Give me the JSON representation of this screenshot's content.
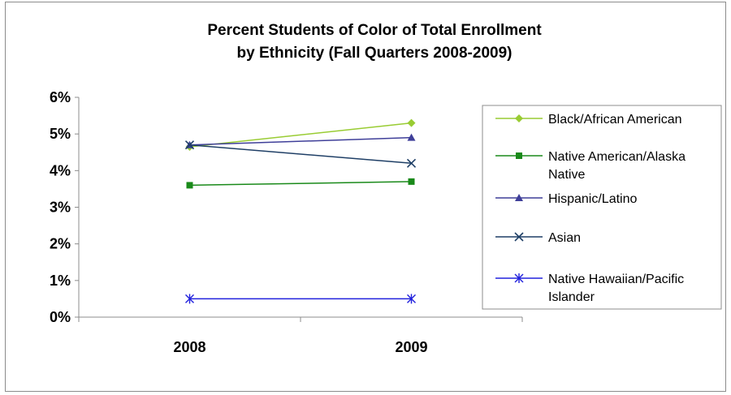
{
  "chart_data": {
    "type": "line",
    "title": [
      "Percent Students of Color of Total Enrollment",
      "by Ethnicity (Fall Quarters 2008-2009)"
    ],
    "categories": [
      "2008",
      "2009"
    ],
    "y_ticks": [
      "0%",
      "1%",
      "2%",
      "3%",
      "4%",
      "5%",
      "6%"
    ],
    "ylim": [
      0,
      6
    ],
    "grid": false,
    "legend_position": "right",
    "series": [
      {
        "name": [
          "Black/African American"
        ],
        "values": [
          4.65,
          5.3
        ],
        "color": "#99cc33",
        "marker": "diamond"
      },
      {
        "name": [
          "Native American/Alaska",
          "Native"
        ],
        "values": [
          3.6,
          3.7
        ],
        "color": "#1a8a1a",
        "marker": "square"
      },
      {
        "name": [
          "Hispanic/Latino"
        ],
        "values": [
          4.7,
          4.9
        ],
        "color": "#3f3f99",
        "marker": "triangle"
      },
      {
        "name": [
          "Asian"
        ],
        "values": [
          4.7,
          4.2
        ],
        "color": "#1f3f66",
        "marker": "x"
      },
      {
        "name": [
          "Native Hawaiian/Pacific",
          "Islander"
        ],
        "values": [
          0.5,
          0.5
        ],
        "color": "#2222dd",
        "marker": "star"
      }
    ]
  }
}
